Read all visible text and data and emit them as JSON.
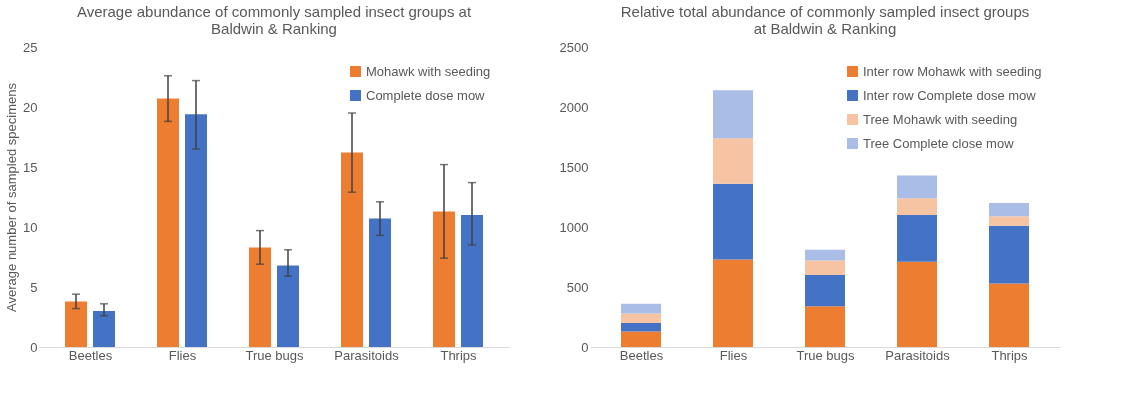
{
  "chart_data": [
    {
      "type": "bar",
      "title": "Average abundance of commonly sampled insect groups at Baldwin & Ranking",
      "ylabel": "Average number of sampled specimens",
      "categories": [
        "Beetles",
        "Flies",
        "True bugs",
        "Parasitoids",
        "Thrips"
      ],
      "series": [
        {
          "name": "Mohawk with seeding",
          "color": "#ed7d31",
          "values": [
            3.8,
            20.7,
            8.3,
            16.2,
            11.3
          ],
          "errors": [
            [
              3.2,
              4.4
            ],
            [
              18.8,
              22.6
            ],
            [
              6.9,
              9.7
            ],
            [
              12.9,
              19.5
            ],
            [
              7.4,
              15.2
            ]
          ]
        },
        {
          "name": "Complete dose mow",
          "color": "#4472c4",
          "values": [
            3.0,
            19.4,
            6.8,
            10.7,
            11.0
          ],
          "errors": [
            [
              2.6,
              3.6
            ],
            [
              16.5,
              22.2
            ],
            [
              5.9,
              8.1
            ],
            [
              9.3,
              12.1
            ],
            [
              8.5,
              13.7
            ]
          ]
        }
      ],
      "ylim": [
        0,
        25
      ],
      "yticks": [
        0,
        5,
        10,
        15,
        20,
        25
      ],
      "grid": false,
      "legend": "top right"
    },
    {
      "type": "bar",
      "stacked": true,
      "title": "Relative total abundance of commonly sampled insect groups at Baldwin & Ranking",
      "categories": [
        "Beetles",
        "Flies",
        "True bugs",
        "Parasitoids",
        "Thrips"
      ],
      "series": [
        {
          "name": "Inter row Mohawk with seeding",
          "color": "#ed7d31",
          "values": [
            130,
            730,
            340,
            710,
            530
          ]
        },
        {
          "name": "Inter row Complete dose mow",
          "color": "#4472c4",
          "values": [
            70,
            630,
            260,
            390,
            480
          ]
        },
        {
          "name": "Tree Mohawk with seeding",
          "color": "#f6c4a3",
          "values": [
            80,
            380,
            120,
            140,
            80
          ]
        },
        {
          "name": "Tree Complete close mow",
          "color": "#a9bde6",
          "values": [
            80,
            400,
            90,
            190,
            110
          ]
        }
      ],
      "ylim": [
        0,
        2500
      ],
      "yticks": [
        0,
        500,
        1000,
        1500,
        2000,
        2500
      ],
      "grid": false,
      "legend": "top right"
    }
  ]
}
